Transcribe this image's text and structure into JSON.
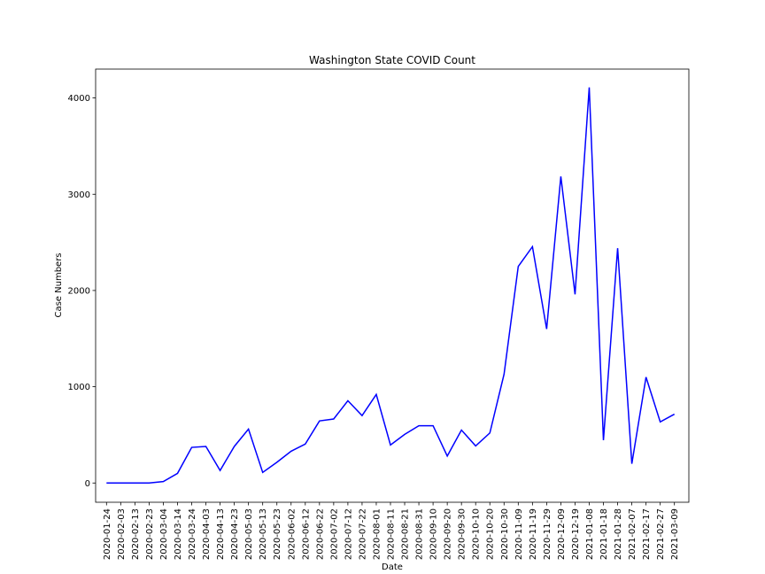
{
  "chart_data": {
    "type": "line",
    "title": "Washington State COVID Count",
    "xlabel": "Date",
    "ylabel": "Case Numbers",
    "ylim": [
      -200,
      4300
    ],
    "y_ticks": [
      0,
      1000,
      2000,
      3000,
      4000
    ],
    "grid": false,
    "legend": "none",
    "line_color": "#0000ff",
    "x": [
      "2020-01-24",
      "2020-02-03",
      "2020-02-13",
      "2020-02-23",
      "2020-03-04",
      "2020-03-14",
      "2020-03-24",
      "2020-04-03",
      "2020-04-13",
      "2020-04-23",
      "2020-05-03",
      "2020-05-13",
      "2020-05-23",
      "2020-06-02",
      "2020-06-12",
      "2020-06-22",
      "2020-07-02",
      "2020-07-12",
      "2020-07-22",
      "2020-08-01",
      "2020-08-11",
      "2020-08-21",
      "2020-08-31",
      "2020-09-10",
      "2020-09-20",
      "2020-09-30",
      "2020-10-10",
      "2020-10-20",
      "2020-10-30",
      "2020-11-09",
      "2020-11-19",
      "2020-11-29",
      "2020-12-09",
      "2020-12-19",
      "2021-01-08",
      "2021-01-18",
      "2021-01-28",
      "2021-02-07",
      "2021-02-17",
      "2021-02-27",
      "2021-03-09"
    ],
    "series": [
      {
        "values": [
          0,
          0,
          0,
          0,
          15,
          100,
          370,
          380,
          130,
          380,
          560,
          110,
          215,
          330,
          405,
          645,
          665,
          855,
          700,
          920,
          395,
          505,
          595,
          595,
          280,
          550,
          385,
          520,
          1130,
          2250,
          2455,
          1600,
          3185,
          1960,
          4110,
          445,
          2440,
          200,
          1100,
          635,
          715
        ]
      }
    ]
  }
}
